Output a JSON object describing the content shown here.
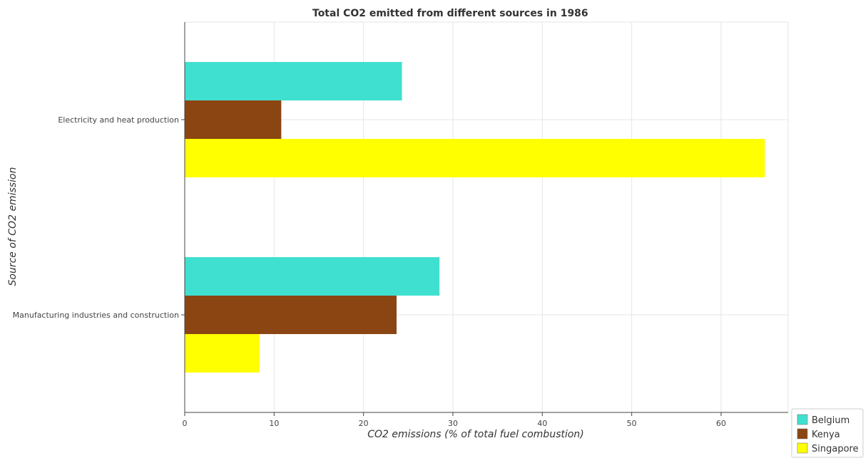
{
  "chart_data": {
    "type": "bar",
    "orientation": "horizontal",
    "title": "Total CO2 emitted from different sources in 1986",
    "xlabel": "CO2 emissions (% of total fuel combustion)",
    "ylabel": "Source of CO2 emission",
    "categories": [
      "Electricity and heat production",
      "Manufacturing industries and construction"
    ],
    "series": [
      {
        "name": "Belgium",
        "color": "#40E0D0",
        "values": [
          24.3,
          28.5
        ]
      },
      {
        "name": "Kenya",
        "color": "#8B4513",
        "values": [
          10.8,
          23.7
        ]
      },
      {
        "name": "Singapore",
        "color": "#FFFF00",
        "values": [
          64.9,
          8.35
        ]
      }
    ],
    "xlim": [
      0,
      67.5
    ],
    "xticks": [
      0,
      10,
      20,
      30,
      40,
      50,
      60
    ],
    "grid": true,
    "legend_position": "bottom-right"
  }
}
